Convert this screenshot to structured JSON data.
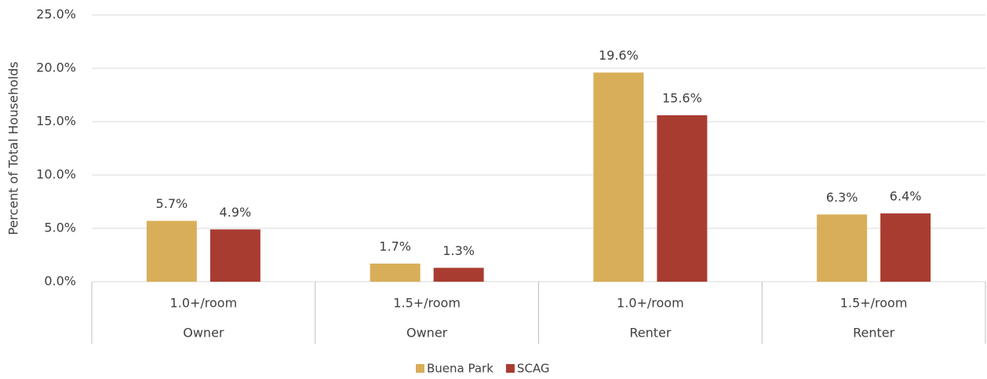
{
  "chart_data": {
    "type": "bar",
    "y_axis_label": "Percent of Total Households",
    "categories": [
      "1.0+/room",
      "1.5+/room",
      "1.0+/room",
      "1.5+/room"
    ],
    "category_groups": [
      "Owner",
      "Owner",
      "Renter",
      "Renter"
    ],
    "series": [
      {
        "name": "Buena Park",
        "color": "#d9ae58",
        "values": [
          5.7,
          1.7,
          19.6,
          6.3
        ],
        "value_labels": [
          "5.7%",
          "1.7%",
          "19.6%",
          "6.3%"
        ]
      },
      {
        "name": "SCAG",
        "color": "#a93c30",
        "values": [
          4.9,
          1.3,
          15.6,
          6.4
        ],
        "value_labels": [
          "4.9%",
          "1.3%",
          "15.6%",
          "6.4%"
        ]
      }
    ],
    "ylim": [
      0,
      25
    ],
    "yticks": [
      {
        "value": 0,
        "label": "0.0%"
      },
      {
        "value": 5,
        "label": "5.0%"
      },
      {
        "value": 10,
        "label": "10.0%"
      },
      {
        "value": 15,
        "label": "15.0%"
      },
      {
        "value": 20,
        "label": "20.0%"
      },
      {
        "value": 25,
        "label": "25.0%"
      }
    ],
    "grid": true,
    "legend": "bottom"
  }
}
